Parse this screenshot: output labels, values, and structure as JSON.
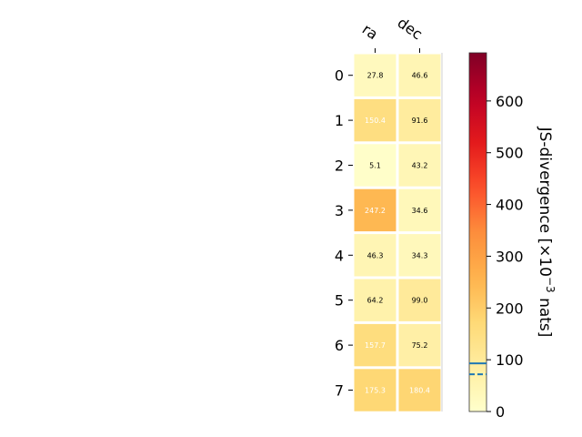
{
  "chart_data": {
    "type": "heatmap",
    "columns": [
      "ra",
      "dec"
    ],
    "rows": [
      "0",
      "1",
      "2",
      "3",
      "4",
      "5",
      "6",
      "7"
    ],
    "values": [
      [
        27.8,
        46.6
      ],
      [
        150.4,
        91.6
      ],
      [
        5.1,
        43.2
      ],
      [
        247.2,
        34.6
      ],
      [
        46.3,
        34.3
      ],
      [
        64.2,
        99.0
      ],
      [
        157.7,
        75.2
      ],
      [
        175.3,
        180.4
      ]
    ],
    "value_labels": [
      [
        "27.8",
        "46.6"
      ],
      [
        "150.4",
        "91.6"
      ],
      [
        "5.1",
        "43.2"
      ],
      [
        "247.2",
        "34.6"
      ],
      [
        "46.3",
        "34.3"
      ],
      [
        "64.2",
        "99.0"
      ],
      [
        "157.7",
        "75.2"
      ],
      [
        "175.3",
        "180.4"
      ]
    ],
    "colorbar": {
      "label": "JS-divergence [×10⁻³ nats]",
      "label_base": "JS-divergence [×10",
      "label_exp": "−3",
      "label_end": " nats]",
      "vmin": 0,
      "vmax": 693,
      "ticks": [
        "0",
        "100",
        "200",
        "300",
        "400",
        "500",
        "600"
      ],
      "tick_values": [
        0,
        100,
        200,
        300,
        400,
        500,
        600
      ],
      "colormap": "YlOrRd",
      "solid_line_value": 93,
      "dashed_line_value": 72,
      "line_color": "#1f77b4"
    },
    "text_color_light": "#ffffff",
    "text_color_dark": "#000000",
    "light_text_threshold": 140
  }
}
